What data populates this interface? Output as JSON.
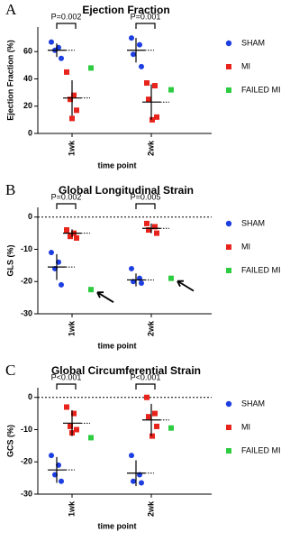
{
  "chart_data": [
    {
      "type": "dot",
      "panel": "A",
      "title": "Ejection Fraction",
      "ylabel": "Ejection Fraction (%)",
      "xlabel": "time point",
      "categories": [
        "1wk",
        "2wk"
      ],
      "ylim": [
        0,
        78
      ],
      "yticks": [
        0,
        20,
        40,
        60
      ],
      "series": [
        {
          "name": "SHAM",
          "color": "#1d3ee0",
          "marker": "circle",
          "values": [
            [
              67,
              63,
              61,
              55
            ],
            [
              70,
              65,
              58,
              49
            ]
          ],
          "means": [
            61,
            61
          ],
          "sds": [
            5,
            9
          ]
        },
        {
          "name": "MI",
          "color": "#e8231b",
          "marker": "square",
          "values": [
            [
              45,
              28,
              25,
              17,
              11
            ],
            [
              37,
              35,
              25,
              12,
              10
            ]
          ],
          "means": [
            26,
            23
          ],
          "sds": [
            13,
            13
          ]
        },
        {
          "name": "FAILED MI",
          "color": "#2ecc40",
          "marker": "square",
          "values": [
            [
              48
            ],
            [
              32
            ]
          ]
        }
      ],
      "annotations": [
        {
          "text": "P=0.002",
          "category": 0
        },
        {
          "text": "P=0.001",
          "category": 1
        }
      ]
    },
    {
      "type": "dot",
      "panel": "B",
      "title": "Global Longitudinal Strain",
      "ylabel": "GLS (%)",
      "xlabel": "time point",
      "categories": [
        "1wk",
        "2wk"
      ],
      "ylim": [
        -30,
        3
      ],
      "yticks": [
        0,
        -10,
        -20,
        -30
      ],
      "hline": 0,
      "arrows": true,
      "series": [
        {
          "name": "SHAM",
          "color": "#1d3ee0",
          "marker": "circle",
          "values": [
            [
              -11,
              -14,
              -16,
              -21
            ],
            [
              -16,
              -19,
              -20,
              -20.5
            ]
          ],
          "means": [
            -15.5,
            -19.5
          ],
          "sds": [
            4,
            2
          ]
        },
        {
          "name": "MI",
          "color": "#e8231b",
          "marker": "square",
          "values": [
            [
              -4,
              -5,
              -6,
              -6.5
            ],
            [
              -2,
              -3,
              -4,
              -5
            ]
          ],
          "means": [
            -5,
            -3.5
          ],
          "sds": [
            1.2,
            1.5
          ]
        },
        {
          "name": "FAILED MI",
          "color": "#2ecc40",
          "marker": "square",
          "values": [
            [
              -22.5
            ],
            [
              -19
            ]
          ]
        }
      ],
      "annotations": [
        {
          "text": "P=0.002",
          "category": 0
        },
        {
          "text": "P=0.005",
          "category": 1
        }
      ]
    },
    {
      "type": "dot",
      "panel": "C",
      "title": "Global Circumferential Strain",
      "ylabel": "GCS (%)",
      "xlabel": "time point",
      "categories": [
        "1wk",
        "2wk"
      ],
      "ylim": [
        -30,
        3
      ],
      "yticks": [
        0,
        -10,
        -20,
        -30
      ],
      "hline": 0,
      "series": [
        {
          "name": "SHAM",
          "color": "#1d3ee0",
          "marker": "circle",
          "values": [
            [
              -18,
              -21,
              -24,
              -26
            ],
            [
              -18,
              -24,
              -26,
              -26.5
            ]
          ],
          "means": [
            -22.5,
            -23.5
          ],
          "sds": [
            4,
            4
          ]
        },
        {
          "name": "MI",
          "color": "#e8231b",
          "marker": "square",
          "values": [
            [
              -3,
              -5,
              -9,
              -10,
              -11
            ],
            [
              0,
              -5,
              -6,
              -9,
              -12
            ]
          ],
          "means": [
            -8,
            -7
          ],
          "sds": [
            4,
            5
          ]
        },
        {
          "name": "FAILED MI",
          "color": "#2ecc40",
          "marker": "square",
          "values": [
            [
              -12.5
            ],
            [
              -9.5
            ]
          ]
        }
      ],
      "annotations": [
        {
          "text": "P<0.001",
          "category": 0
        },
        {
          "text": "P<0.001",
          "category": 1
        }
      ]
    }
  ]
}
